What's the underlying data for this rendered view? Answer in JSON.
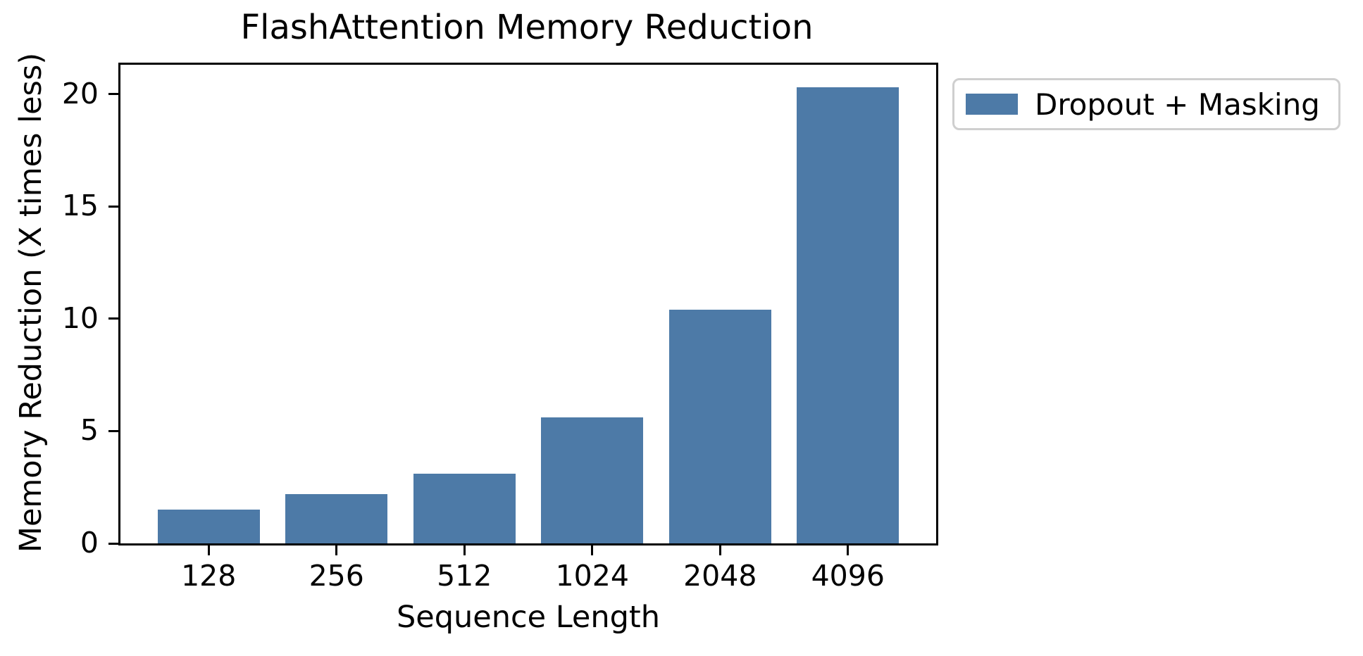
{
  "figure": {
    "background": "#ffffff",
    "text_color": "#000000",
    "axis_color": "#000000",
    "legend_border_color": "#cfcfcf"
  },
  "chart_data": {
    "type": "bar",
    "title": "FlashAttention Memory Reduction",
    "xlabel": "Sequence Length",
    "ylabel": "Memory Reduction (X times less)",
    "categories": [
      "128",
      "256",
      "512",
      "1024",
      "2048",
      "4096"
    ],
    "series": [
      {
        "name": "Dropout + Masking",
        "color": "#4d7aa7",
        "values": [
          1.5,
          2.2,
          3.1,
          5.6,
          10.4,
          20.3
        ]
      }
    ],
    "yticks": [
      0,
      5,
      10,
      15,
      20
    ],
    "ylim": [
      0,
      21.3
    ],
    "xlim": [
      -0.69,
      5.69
    ],
    "bar_width": 0.8,
    "grid": false,
    "legend": {
      "position": "outside-upper-right",
      "entries": [
        "Dropout + Masking"
      ]
    }
  }
}
